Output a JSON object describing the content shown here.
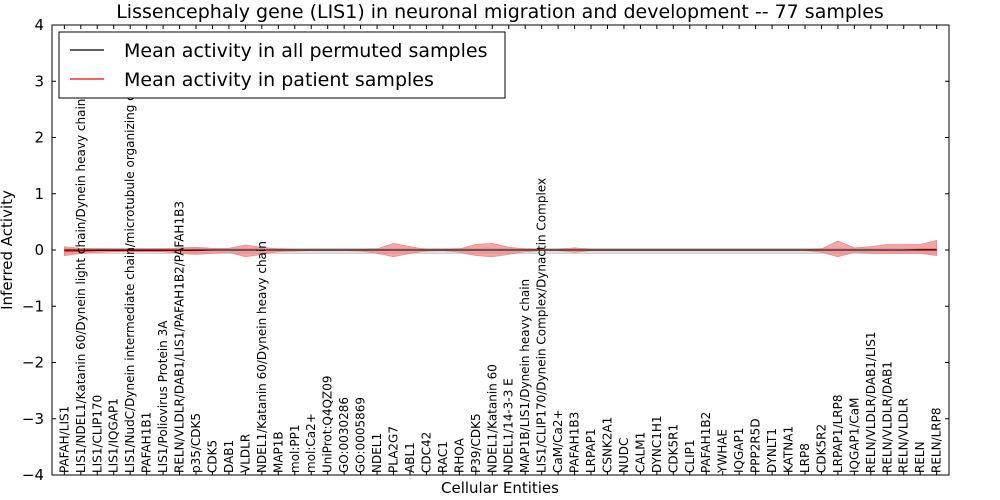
{
  "chart_data": {
    "type": "line",
    "title": "Lissencephaly gene (LIS1) in neuronal migration and development -- 77 samples",
    "xlabel": "Cellular Entities",
    "ylabel": "Inferred Activity",
    "ylim": [
      -4,
      4
    ],
    "yticks": [
      "−4",
      "−3",
      "−2",
      "−1",
      "0",
      "1",
      "2",
      "3",
      "4"
    ],
    "grid": false,
    "legend_position": "top-left",
    "categories": [
      "PAFAH/LIS1",
      "LIS1/NDEL1/Katanin 60/Dynein light chain/Dynein heavy chain",
      "LIS1/CLIP170",
      "LIS1/IQGAP1",
      "LIS1/NudC/Dynein intermediate chain/microtubule organizing center",
      "PAFAH1B1",
      "LIS1/Poliovirus Protein 3A",
      "RELN/VLDLR/DAB1/LIS1/PAFAH1B2/PAFAH1B3",
      "p35/CDK5",
      "CDK5",
      "DAB1",
      "VLDLR",
      "NDEL1/Katanin 60/Dynein heavy chain",
      "MAP1B",
      "mol:PP1",
      "mol:Ca2+",
      "UniProt:Q4QZ09",
      "GO:0030286",
      "GO:0005869",
      "NDEL1",
      "PLA2G7",
      "ABL1",
      "CDC42",
      "RAC1",
      "RHOA",
      "P39/CDK5",
      "NDEL1/Katanin 60",
      "NDEL1/14-3-3 E",
      "MAP1B/LIS1/Dynein heavy chain",
      "LIS1/CLIP170/Dynein Complex/Dynactin Complex",
      "CaM/Ca2+",
      "PAFAH1B3",
      "LRPAP1",
      "CSNK2A1",
      "NUDC",
      "CALM1",
      "DYNC1H1",
      "CDK5R1",
      "CLIP1",
      "PAFAH1B2",
      "YWHAE",
      "IQGAP1",
      "PPP2R5D",
      "DYNLT1",
      "KATNA1",
      "LRP8",
      "CDK5R2",
      "LRPAP1/LRP8",
      "IQGAP1/CaM",
      "RELN/VLDLR/DAB1/LIS1",
      "RELN/VLDLR/DAB1",
      "RELN/VLDLR",
      "RELN",
      "RELN/LRP8"
    ],
    "series": [
      {
        "name": "Mean activity in all permuted samples",
        "color": "#000000",
        "values": [
          0,
          0,
          0,
          0,
          0,
          0,
          0,
          0,
          0,
          0,
          0,
          0,
          0,
          0,
          0,
          0,
          0,
          0,
          0,
          0,
          0,
          0,
          0,
          0,
          0,
          0,
          0,
          0,
          0,
          0,
          0,
          0,
          0,
          0,
          0,
          0,
          0,
          0,
          0,
          0,
          0,
          0,
          0,
          0,
          0,
          0,
          0,
          0,
          0,
          0,
          0,
          0,
          0,
          0
        ],
        "band_upper": [
          0.03,
          0.03,
          0.03,
          0.03,
          0.03,
          0.03,
          0.03,
          0.03,
          0.03,
          0.03,
          0.03,
          0.03,
          0.03,
          0.03,
          0.03,
          0.03,
          0.03,
          0.03,
          0.03,
          0.03,
          0.03,
          0.03,
          0.03,
          0.03,
          0.03,
          0.03,
          0.03,
          0.03,
          0.03,
          0.03,
          0.03,
          0.03,
          0.03,
          0.03,
          0.03,
          0.03,
          0.03,
          0.03,
          0.03,
          0.03,
          0.03,
          0.03,
          0.03,
          0.03,
          0.03,
          0.03,
          0.03,
          0.03,
          0.03,
          0.03,
          0.03,
          0.03,
          0.03,
          0.03
        ],
        "band_lower": [
          -0.06,
          -0.06,
          -0.06,
          -0.06,
          -0.06,
          -0.06,
          -0.06,
          -0.06,
          -0.06,
          -0.06,
          -0.06,
          -0.06,
          -0.06,
          -0.06,
          -0.06,
          -0.06,
          -0.06,
          -0.06,
          -0.06,
          -0.06,
          -0.06,
          -0.06,
          -0.06,
          -0.06,
          -0.06,
          -0.06,
          -0.06,
          -0.06,
          -0.06,
          -0.06,
          -0.06,
          -0.06,
          -0.06,
          -0.06,
          -0.06,
          -0.06,
          -0.06,
          -0.06,
          -0.06,
          -0.06,
          -0.06,
          -0.06,
          -0.06,
          -0.06,
          -0.06,
          -0.06,
          -0.06,
          -0.06,
          -0.06,
          -0.06,
          -0.06,
          -0.06,
          -0.06,
          -0.06
        ],
        "band_color": "#bbbbbb"
      },
      {
        "name": "Mean activity in patient samples",
        "color": "#ff0000",
        "values": [
          -0.02,
          -0.02,
          -0.01,
          -0.01,
          -0.01,
          -0.01,
          -0.01,
          -0.01,
          -0.01,
          0,
          0,
          0,
          0,
          0,
          0,
          0,
          0,
          0,
          0,
          0,
          0,
          0,
          0,
          0,
          0,
          0,
          0,
          0,
          0,
          0,
          0,
          0,
          0,
          0,
          0,
          0,
          0,
          0,
          0,
          0,
          0,
          0,
          0,
          0,
          0,
          0,
          0,
          0,
          0,
          0,
          0,
          0,
          0.01,
          0.01
        ],
        "band_upper": [
          0.06,
          0.03,
          0.02,
          0.02,
          0.02,
          0.02,
          0.02,
          0.04,
          0.05,
          0.03,
          0.03,
          0.09,
          0.05,
          0.02,
          0.01,
          0.01,
          0.01,
          0.01,
          0.01,
          0.02,
          0.12,
          0.06,
          0.01,
          0.01,
          0.02,
          0.1,
          0.12,
          0.05,
          0.02,
          0.01,
          0.01,
          0.04,
          0.01,
          0.01,
          0.01,
          0.01,
          0.01,
          0.01,
          0.01,
          0.01,
          0.01,
          0.01,
          0.01,
          0.01,
          0.01,
          0.01,
          0.02,
          0.16,
          0.04,
          0.06,
          0.1,
          0.1,
          0.1,
          0.17
        ],
        "band_lower": [
          -0.1,
          -0.06,
          -0.04,
          -0.03,
          -0.03,
          -0.03,
          -0.03,
          -0.06,
          -0.08,
          -0.06,
          -0.04,
          -0.12,
          -0.08,
          -0.03,
          -0.02,
          -0.01,
          -0.01,
          -0.01,
          -0.02,
          -0.06,
          -0.12,
          -0.06,
          -0.02,
          -0.01,
          -0.04,
          -0.1,
          -0.12,
          -0.08,
          -0.03,
          -0.01,
          -0.01,
          -0.04,
          -0.01,
          -0.01,
          -0.01,
          -0.01,
          -0.01,
          -0.01,
          -0.01,
          -0.01,
          -0.01,
          -0.01,
          -0.01,
          -0.01,
          -0.01,
          -0.01,
          -0.04,
          -0.12,
          -0.04,
          -0.06,
          -0.06,
          -0.06,
          -0.06,
          -0.1
        ],
        "band_color": "#f08080"
      }
    ]
  }
}
